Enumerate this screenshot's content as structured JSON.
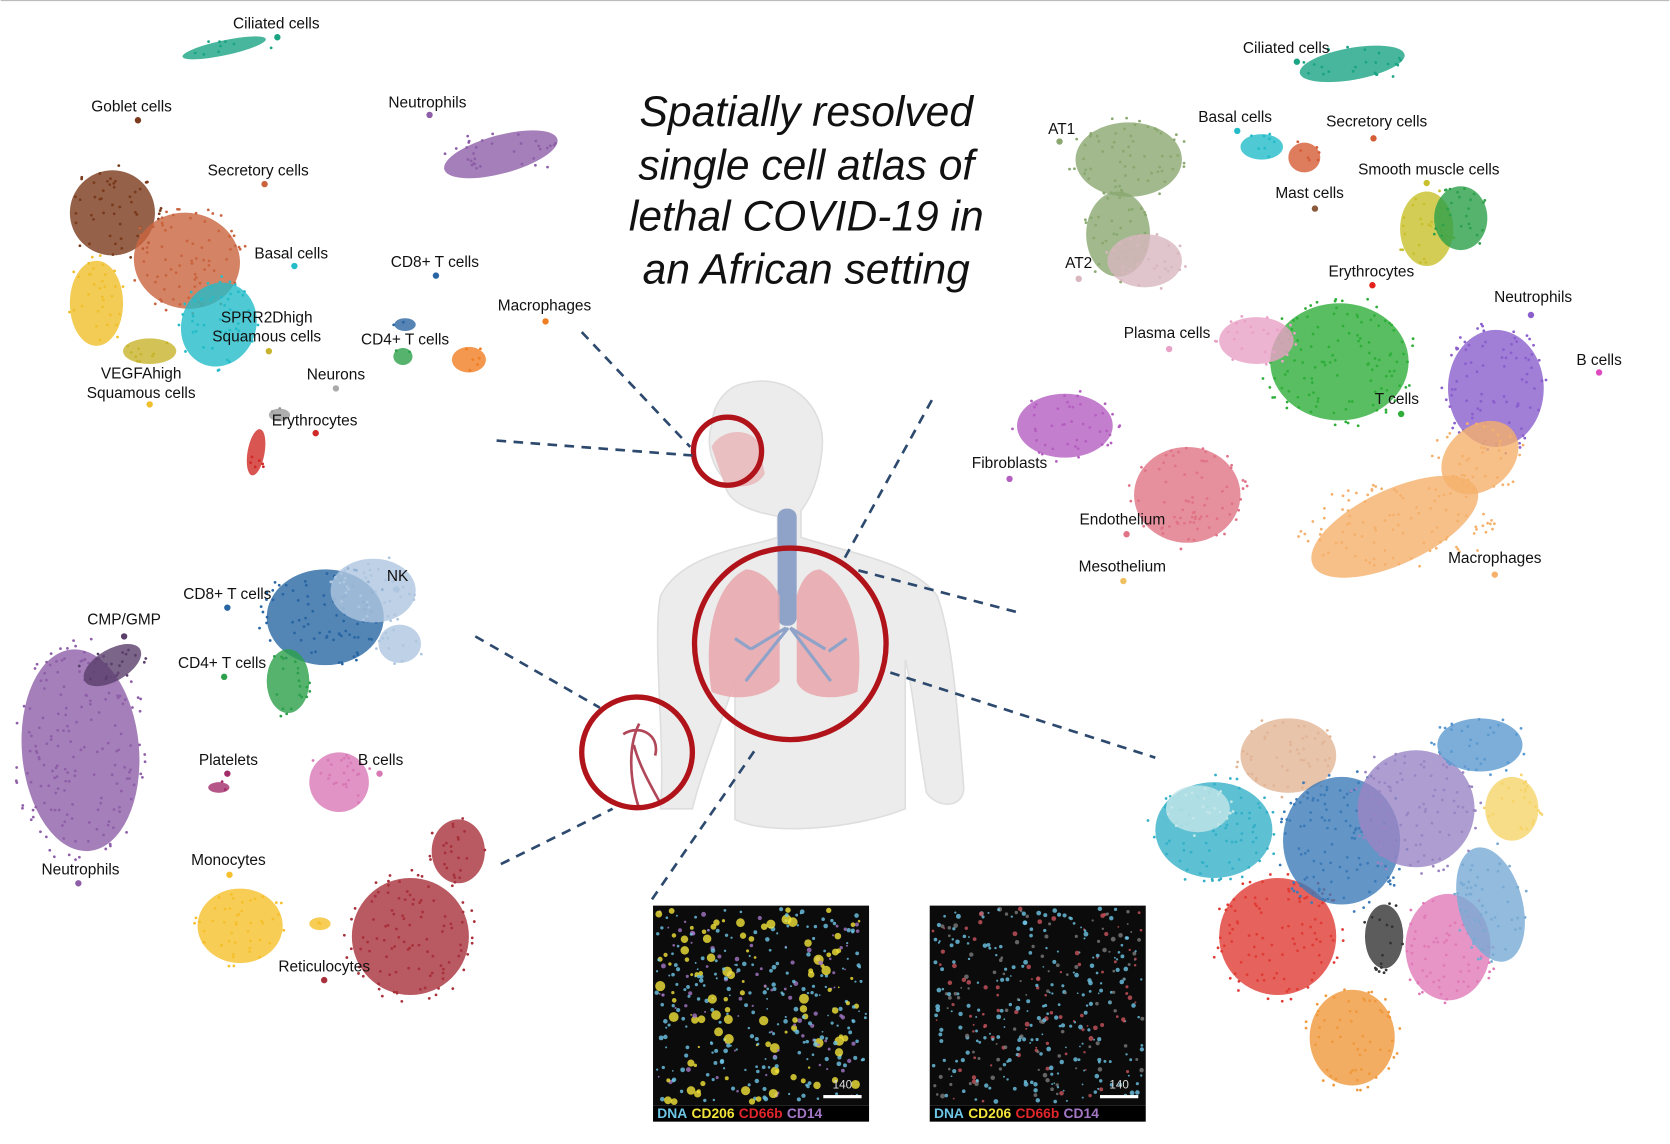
{
  "title_lines": [
    "Spatially resolved",
    "single cell atlas of",
    "lethal COVID-19 in",
    "an African setting"
  ],
  "upper_airway": {
    "labels": [
      "Ciliated cells",
      "Goblet cells",
      "Neutrophils",
      "Secretory cells",
      "Basal cells",
      "CD8+ T cells",
      "Macrophages",
      [
        "SPRR2Dhigh",
        "Squamous cells"
      ],
      "CD4+ T cells",
      "Neurons",
      [
        "VEGFAhigh",
        "Squamous cells"
      ],
      "Erythrocytes"
    ]
  },
  "lung": {
    "labels": [
      "Ciliated cells",
      "AT1",
      "Basal cells",
      "Secretory cells",
      "Smooth muscle cells",
      "Mast cells",
      "AT2",
      "Erythrocytes",
      "Neutrophils",
      "Plasma cells",
      "B cells",
      "T cells",
      "Fibroblasts",
      "Endothelium",
      "Mesothelium",
      "Macrophages"
    ]
  },
  "blood": {
    "labels": [
      "NK",
      "CD8+ T cells",
      "CMP/GMP",
      "CD4+ T cells",
      "Platelets",
      "B cells",
      "Monocytes",
      "Neutrophils",
      "Reticulocytes"
    ]
  },
  "imaging": [
    {
      "channels": [
        "DNA",
        "CD206",
        "CD66b",
        "CD14"
      ],
      "scale_bar": "140"
    },
    {
      "channels": [
        "DNA",
        "CD206",
        "CD66b",
        "CD14"
      ],
      "scale_bar": "140"
    }
  ]
}
